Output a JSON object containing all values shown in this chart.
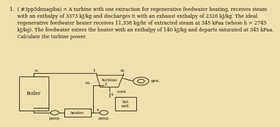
{
  "title_text": "1.  ( #3pp5dimagiba) = A turbine with one extraction for regenerative feedwater heating, receives steam\n     with an enthalpy of 3373 kJ/kg and discharges it with an exhaust enthalpy of 2326 kJ/kg. The ideal\n     regenerative feedwater heater receives 11,338 kg/hr of extracted steam at 345 kPaa (whose h = 2745\n     kJ/kg). The feedwater enters the heater with an enthalpy of 140 kJ/kg and departs saturated at 345 kPaa.\n     Calculate the turbine power.",
  "bg_color": "#f0e0b0",
  "line_color": "#3a2a10",
  "text_color": "#1a0a00",
  "diagram": {
    "boiler_label": "Boiler",
    "turbine_label": "turbine",
    "gen_label": "gen.",
    "cond_label": "cond.",
    "heater_label": "heater",
    "hotwell_label": "hot\nwell",
    "pump1_label": "pump",
    "pump2_label": "pump",
    "node_n": "n",
    "node_1": "1",
    "node_2": "2",
    "node_m1": "m₁",
    "node_4": "4",
    "kc_label": "kc"
  }
}
